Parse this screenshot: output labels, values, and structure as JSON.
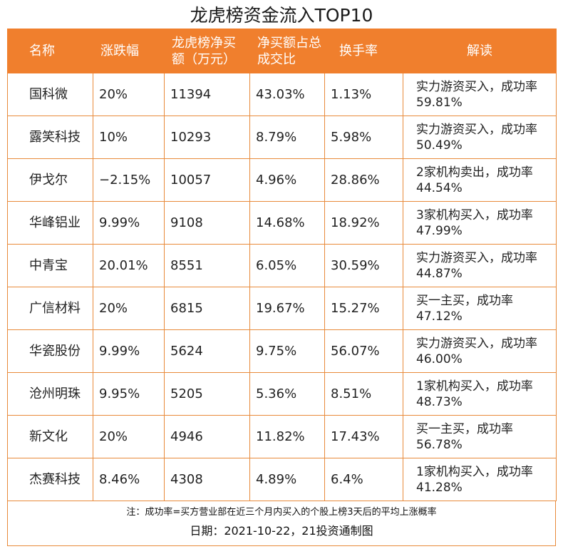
{
  "title": "龙虎榜资金流入TOP10",
  "table": {
    "headers": [
      "名称",
      "涨跌幅",
      "龙虎榜净买额（万元）",
      "净买额占总成交比",
      "换手率",
      "解读"
    ],
    "rows": [
      {
        "name": "国科微",
        "change": "20%",
        "net_buy": "11394",
        "ratio": "43.03%",
        "turnover": "1.13%",
        "note": "实力游资买入，成功率59.81%"
      },
      {
        "name": "露笑科技",
        "change": "10%",
        "net_buy": "10293",
        "ratio": "8.79%",
        "turnover": "5.98%",
        "note": "实力游资买入，成功率50.49%"
      },
      {
        "name": "伊戈尔",
        "change": "−2.15%",
        "net_buy": "10057",
        "ratio": "4.96%",
        "turnover": "28.86%",
        "note": "2家机构卖出，成功率44.54%"
      },
      {
        "name": "华峰铝业",
        "change": "9.99%",
        "net_buy": "9108",
        "ratio": "14.68%",
        "turnover": "18.92%",
        "note": "3家机构买入，成功率47.99%"
      },
      {
        "name": "中青宝",
        "change": "20.01%",
        "net_buy": "8551",
        "ratio": "6.05%",
        "turnover": "30.59%",
        "note": "实力游资买入，成功率44.87%"
      },
      {
        "name": "广信材料",
        "change": "20%",
        "net_buy": "6815",
        "ratio": "19.67%",
        "turnover": "15.27%",
        "note": "买一主买，成功率47.12%"
      },
      {
        "name": "华瓷股份",
        "change": "9.99%",
        "net_buy": "5624",
        "ratio": "9.75%",
        "turnover": "56.07%",
        "note": "实力游资买入，成功率46.00%"
      },
      {
        "name": "沧州明珠",
        "change": "9.95%",
        "net_buy": "5205",
        "ratio": "5.36%",
        "turnover": "8.51%",
        "note": "1家机构买入，成功率48.73%"
      },
      {
        "name": "新文化",
        "change": "20%",
        "net_buy": "4946",
        "ratio": "11.82%",
        "turnover": "17.43%",
        "note": "买一主买，成功率56.78%"
      },
      {
        "name": "杰赛科技",
        "change": "8.46%",
        "net_buy": "4308",
        "ratio": "4.89%",
        "turnover": "6.4%",
        "note": "1家机构买入，成功率41.28%"
      }
    ]
  },
  "footnote": "注：成功率=买方营业部在近三个月内买入的个股上榜3天后的平均上涨概率",
  "date_line": "日期：2021-10-22，21投资通制图",
  "colors": {
    "header_bg": "#f07f2d",
    "border": "#e88a3a"
  }
}
